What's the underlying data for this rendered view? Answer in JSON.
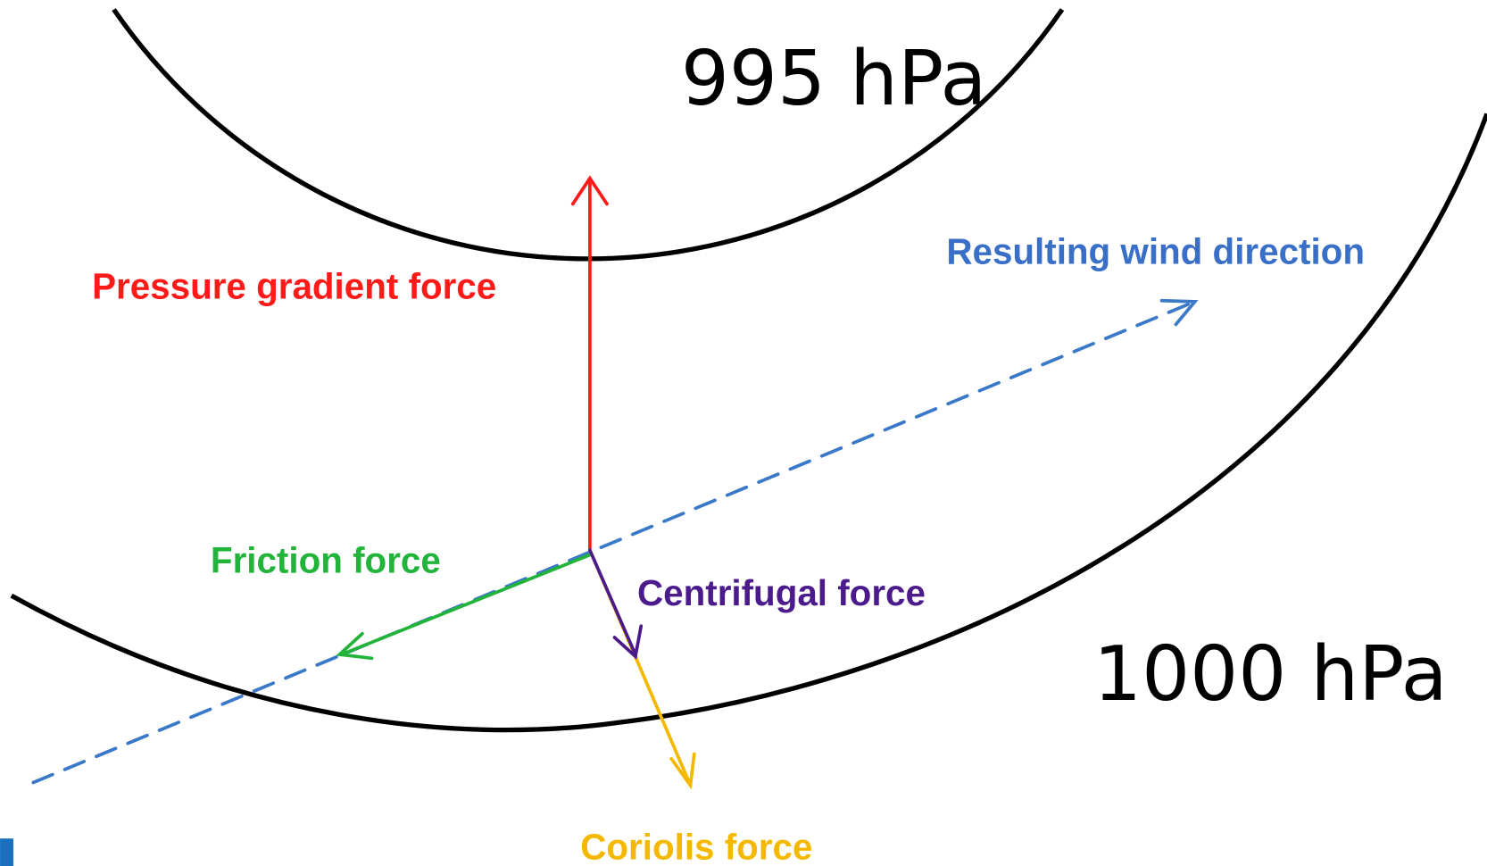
{
  "isobars": [
    {
      "label": "995 hPa"
    },
    {
      "label": "1000 hPa"
    }
  ],
  "forces": [
    {
      "label": "Pressure gradient force"
    },
    {
      "label": "Friction force"
    },
    {
      "label": "Centrifugal force"
    },
    {
      "label": "Coriolis force"
    }
  ],
  "wind": {
    "label": "Resulting wind direction"
  }
}
